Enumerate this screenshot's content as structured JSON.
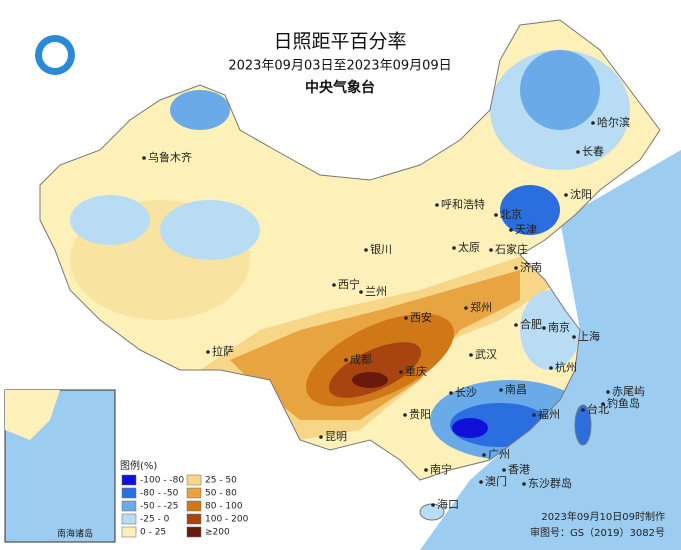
{
  "header": {
    "title": "日照距平百分率",
    "period": "2023年09月03日至2023年09月09日",
    "agency": "中央气象台"
  },
  "legend": {
    "title": "图例(%)",
    "items": [
      {
        "label": "-100 - -80",
        "color": "#1010d8"
      },
      {
        "label": "-80 - -50",
        "color": "#2a6ee0"
      },
      {
        "label": "-50 - -25",
        "color": "#6aaae8"
      },
      {
        "label": "-25 - 0",
        "color": "#b8dcf4"
      },
      {
        "label": "0 - 25",
        "color": "#fdf0b8"
      },
      {
        "label": "25 - 50",
        "color": "#f8d688"
      },
      {
        "label": "50 - 80",
        "color": "#e8a440"
      },
      {
        "label": "80 - 100",
        "color": "#d07818"
      },
      {
        "label": "100 - 200",
        "color": "#a84410"
      },
      {
        "label": "≥200",
        "color": "#6a1a0a"
      }
    ]
  },
  "cities": [
    "乌鲁木齐",
    "哈尔滨",
    "长春",
    "沈阳",
    "呼和浩特",
    "北京",
    "天津",
    "石家庄",
    "太原",
    "银川",
    "济南",
    "西宁",
    "兰州",
    "郑州",
    "西安",
    "合肥",
    "南京",
    "上海",
    "杭州",
    "成都",
    "拉萨",
    "武汉",
    "重庆",
    "长沙",
    "南昌",
    "贵阳",
    "福州",
    "台北",
    "昆明",
    "南宁",
    "广州",
    "香港",
    "澳门",
    "海口",
    "赤尾屿",
    "钓鱼岛",
    "东沙群岛"
  ],
  "inset": {
    "label": "南海诸岛"
  },
  "footer": {
    "made": "2023年09月10日09时制作",
    "approval": "审图号：GS（2019）3082号"
  }
}
